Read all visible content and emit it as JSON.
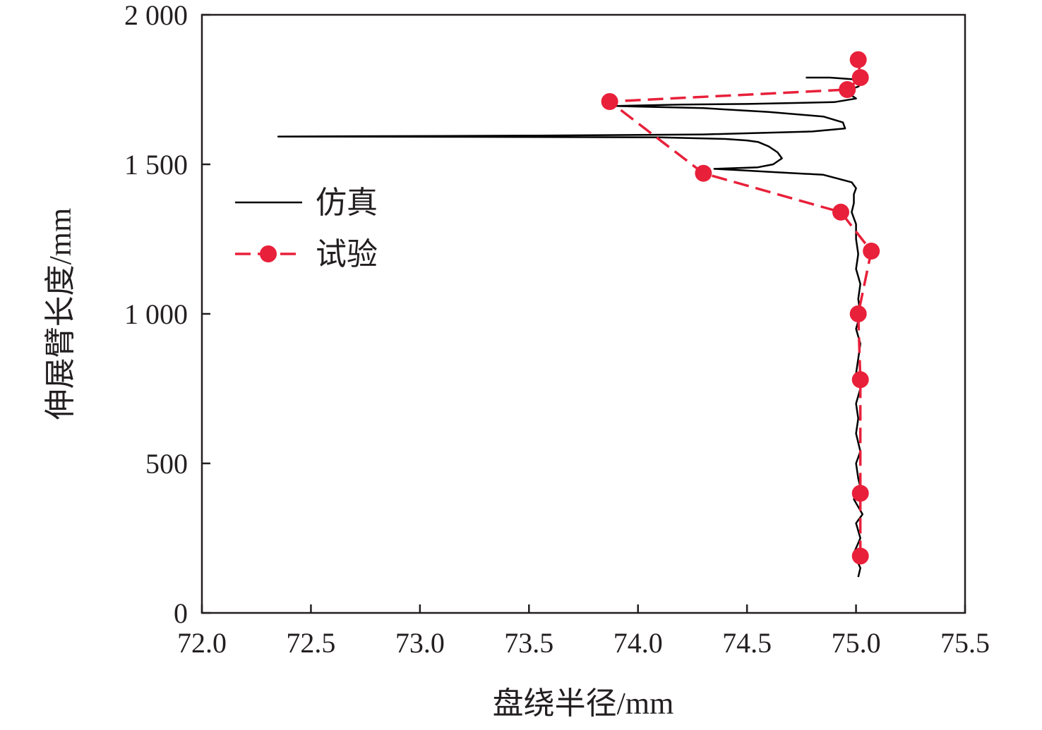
{
  "chart_data": {
    "type": "line",
    "xlabel": "盘绕半径/mm",
    "ylabel": "伸展臂长度/mm",
    "xlim": [
      72.0,
      75.5
    ],
    "ylim": [
      0,
      2000
    ],
    "x_ticks": [
      "72.0",
      "72.5",
      "73.0",
      "73.5",
      "74.0",
      "74.5",
      "75.0",
      "75.5"
    ],
    "y_ticks": [
      "0",
      "500",
      "1 000",
      "1 500",
      "2 000"
    ],
    "x_tick_values": [
      72.0,
      72.5,
      73.0,
      73.5,
      74.0,
      74.5,
      75.0,
      75.5
    ],
    "y_tick_values": [
      0,
      500,
      1000,
      1500,
      2000
    ],
    "grid": false,
    "legend_position": "center-left",
    "series": [
      {
        "name": "仿真",
        "style": "solid",
        "color": "#000000",
        "points": [
          [
            75.01,
            120
          ],
          [
            75.02,
            150
          ],
          [
            74.99,
            200
          ],
          [
            75.02,
            250
          ],
          [
            75.0,
            300
          ],
          [
            75.03,
            330
          ],
          [
            74.99,
            380
          ],
          [
            75.02,
            420
          ],
          [
            75.01,
            450
          ],
          [
            75.0,
            500
          ],
          [
            75.02,
            540
          ],
          [
            75.0,
            600
          ],
          [
            75.01,
            650
          ],
          [
            75.0,
            700
          ],
          [
            75.02,
            750
          ],
          [
            75.0,
            800
          ],
          [
            75.01,
            850
          ],
          [
            75.02,
            900
          ],
          [
            75.0,
            950
          ],
          [
            75.02,
            1000
          ],
          [
            75.01,
            1050
          ],
          [
            75.02,
            1100
          ],
          [
            75.0,
            1150
          ],
          [
            75.01,
            1200
          ],
          [
            75.0,
            1250
          ],
          [
            75.0,
            1300
          ],
          [
            74.98,
            1340
          ],
          [
            74.99,
            1370
          ],
          [
            74.99,
            1400
          ],
          [
            75.0,
            1420
          ],
          [
            74.98,
            1440
          ],
          [
            74.85,
            1465
          ],
          [
            74.6,
            1475
          ],
          [
            74.48,
            1480
          ],
          [
            74.35,
            1485
          ],
          [
            74.55,
            1490
          ],
          [
            74.62,
            1500
          ],
          [
            74.66,
            1520
          ],
          [
            74.64,
            1540
          ],
          [
            74.6,
            1560
          ],
          [
            74.55,
            1575
          ],
          [
            74.5,
            1580
          ],
          [
            74.4,
            1585
          ],
          [
            74.1,
            1590
          ],
          [
            73.2,
            1592
          ],
          [
            72.35,
            1593
          ],
          [
            73.5,
            1596
          ],
          [
            74.3,
            1600
          ],
          [
            74.8,
            1610
          ],
          [
            74.95,
            1620
          ],
          [
            74.94,
            1640
          ],
          [
            74.85,
            1660
          ],
          [
            74.6,
            1675
          ],
          [
            74.3,
            1688
          ],
          [
            73.9,
            1695
          ],
          [
            74.2,
            1700
          ],
          [
            74.5,
            1702
          ],
          [
            74.9,
            1708
          ],
          [
            75.0,
            1720
          ],
          [
            74.95,
            1745
          ],
          [
            75.01,
            1760
          ],
          [
            75.03,
            1775
          ],
          [
            74.98,
            1785
          ],
          [
            74.88,
            1790
          ],
          [
            74.77,
            1790
          ]
        ]
      },
      {
        "name": "试验",
        "style": "dashed",
        "color": "#e8203a",
        "marker": "circle",
        "points": [
          [
            75.02,
            190
          ],
          [
            75.02,
            400
          ],
          [
            75.02,
            780
          ],
          [
            75.01,
            1000
          ],
          [
            75.07,
            1210
          ],
          [
            74.93,
            1340
          ],
          [
            74.3,
            1470
          ],
          [
            73.87,
            1710
          ],
          [
            74.96,
            1750
          ],
          [
            75.02,
            1790
          ],
          [
            75.01,
            1850
          ]
        ]
      }
    ]
  }
}
